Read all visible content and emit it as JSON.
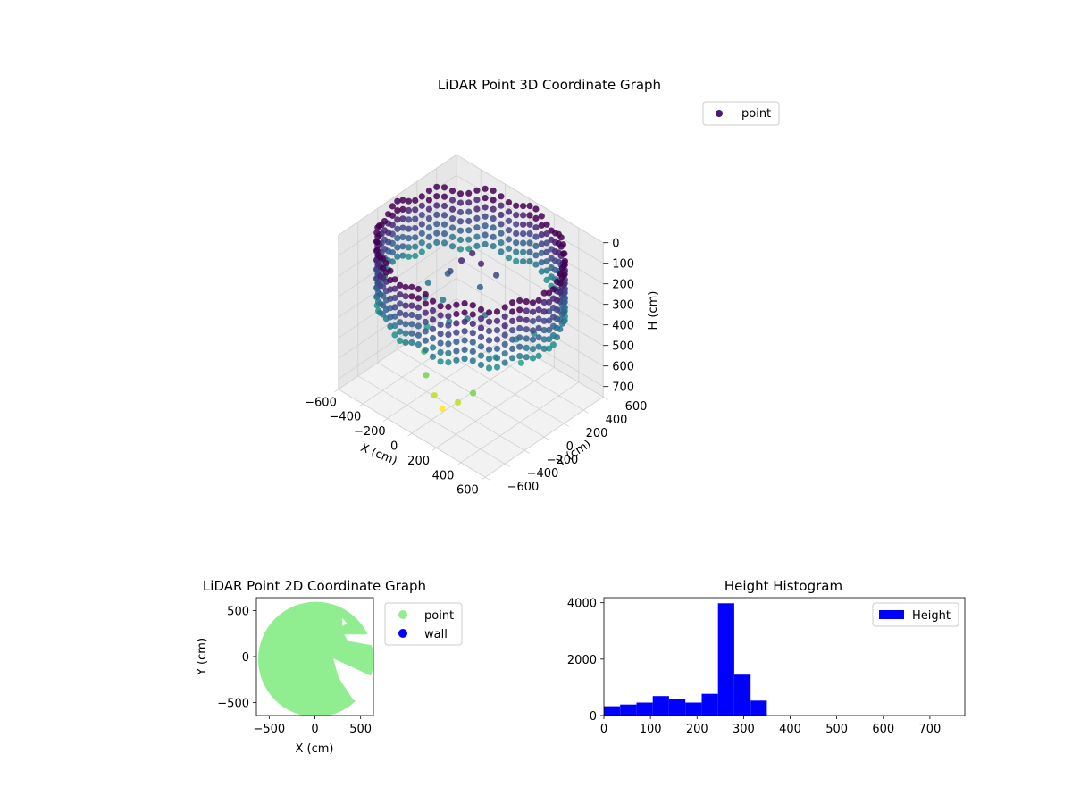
{
  "chart_data": [
    {
      "type": "scatter",
      "projection": "3d",
      "title": "LiDAR Point 3D Coordinate Graph",
      "xlabel": "X (cm)",
      "ylabel": "Y (cm)",
      "zlabel": "H (cm)",
      "xticks": [
        "−600",
        "−400",
        "−200",
        "0",
        "200",
        "400",
        "600"
      ],
      "yticks": [
        "600",
        "400",
        "200",
        "0",
        "−200",
        "−400",
        "−600"
      ],
      "zticks": [
        "0",
        "100",
        "200",
        "300",
        "400",
        "500",
        "600",
        "700"
      ],
      "xlim": [
        -600,
        600
      ],
      "ylim": [
        -600,
        600
      ],
      "zlim": [
        0,
        750
      ],
      "z_inverted": true,
      "colormap": "viridis",
      "legend": {
        "placement": "upper-right",
        "entries": [
          {
            "name": "point",
            "color": "#481b6d"
          }
        ]
      },
      "grid": true,
      "series": [
        {
          "name": "point",
          "description_of_shape": "ring of points around the scan perimeter plus interior clusters",
          "ring": {
            "radius": 600,
            "h_range": [
              50,
              320
            ]
          },
          "interior_points": [
            {
              "x": -120,
              "y": -60,
              "h": 180
            },
            {
              "x": -60,
              "y": -20,
              "h": 120
            },
            {
              "x": -20,
              "y": 40,
              "h": 90
            },
            {
              "x": 20,
              "y": 80,
              "h": 140
            },
            {
              "x": 60,
              "y": 20,
              "h": 220
            },
            {
              "x": -180,
              "y": -220,
              "h": 420
            },
            {
              "x": -140,
              "y": -300,
              "h": 500
            },
            {
              "x": -60,
              "y": -380,
              "h": 560
            },
            {
              "x": 40,
              "y": -420,
              "h": 610
            },
            {
              "x": 120,
              "y": -440,
              "h": 640
            },
            {
              "x": 200,
              "y": -380,
              "h": 600
            },
            {
              "x": 260,
              "y": -300,
              "h": 560
            },
            {
              "x": 300,
              "y": -120,
              "h": 430
            },
            {
              "x": 340,
              "y": 40,
              "h": 380
            },
            {
              "x": 420,
              "y": 120,
              "h": 350
            },
            {
              "x": 460,
              "y": -60,
              "h": 420
            },
            {
              "x": -260,
              "y": -140,
              "h": 330
            },
            {
              "x": -300,
              "y": -60,
              "h": 300
            },
            {
              "x": -220,
              "y": 40,
              "h": 260
            },
            {
              "x": -100,
              "y": -160,
              "h": 280
            },
            {
              "x": 0,
              "y": -220,
              "h": 330
            },
            {
              "x": 100,
              "y": -160,
              "h": 300
            },
            {
              "x": 180,
              "y": -80,
              "h": 280
            },
            {
              "x": 80,
              "y": 160,
              "h": 200
            }
          ]
        }
      ]
    },
    {
      "type": "scatter",
      "title": "LiDAR Point 2D Coordinate Graph",
      "xlabel": "X (cm)",
      "ylabel": "Y (cm)",
      "xticks": [
        "−500",
        "0",
        "500"
      ],
      "yticks": [
        "500",
        "0",
        "−500"
      ],
      "xlim": [
        -640,
        640
      ],
      "ylim": [
        -640,
        640
      ],
      "legend": {
        "placement": "outside-right",
        "entries": [
          {
            "name": "point",
            "color": "#90ee90"
          },
          {
            "name": "wall",
            "color": "#0000ff"
          }
        ]
      },
      "series": [
        {
          "name": "point",
          "color": "#90ee90",
          "shape": "filled disc of radius ~640 centred near (0,0) with wedge gaps on the right side"
        },
        {
          "name": "wall",
          "color": "#0000ff",
          "values": []
        }
      ]
    },
    {
      "type": "bar",
      "subtype": "histogram",
      "title": "Height Histogram",
      "xlabel": "",
      "ylabel": "",
      "xticks": [
        "0",
        "100",
        "200",
        "300",
        "400",
        "500",
        "600",
        "700"
      ],
      "yticks": [
        "0",
        "2000",
        "4000"
      ],
      "xlim": [
        0,
        775
      ],
      "ylim": [
        0,
        4180
      ],
      "color": "#0000ff",
      "legend": {
        "placement": "upper-right",
        "entries": [
          {
            "name": "Height",
            "color": "#0000ff"
          }
        ]
      },
      "series": [
        {
          "name": "Height",
          "bin_edges": [
            0,
            35,
            70,
            105,
            140,
            175,
            210,
            245,
            280,
            315,
            350
          ],
          "values": [
            330,
            390,
            460,
            690,
            590,
            460,
            770,
            3980,
            1450,
            530
          ]
        }
      ]
    }
  ]
}
